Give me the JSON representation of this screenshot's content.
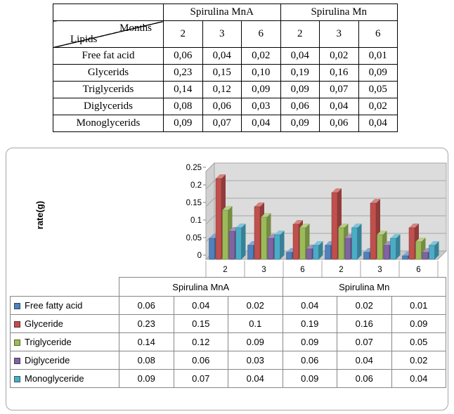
{
  "top_table": {
    "corner": {
      "top_right": "Months",
      "bottom_left": "Lipids"
    },
    "group_headers": [
      "Spirulina MnA",
      "Spirulina Mn"
    ],
    "months": [
      "2",
      "3",
      "6",
      "2",
      "3",
      "6"
    ],
    "rows": [
      {
        "label": "Free fat acid",
        "values": [
          "0,06",
          "0,04",
          "0,02",
          "0,04",
          "0,02",
          "0,01"
        ]
      },
      {
        "label": "Glycerids",
        "values": [
          "0,23",
          "0,15",
          "0,10",
          "0,19",
          "0,16",
          "0,09"
        ]
      },
      {
        "label": "Triglycerids",
        "values": [
          "0,14",
          "0,12",
          "0,09",
          "0,09",
          "0,07",
          "0,05"
        ]
      },
      {
        "label": "Diglycerids",
        "values": [
          "0,08",
          "0,06",
          "0,03",
          "0,06",
          "0,04",
          "0,02"
        ]
      },
      {
        "label": "Monoglycerids",
        "values": [
          "0,09",
          "0,07",
          "0,04",
          "0,09",
          "0,06",
          "0,04"
        ]
      }
    ]
  },
  "chart_data": {
    "type": "bar",
    "variant": "3d-clustered-column",
    "title": "",
    "ylabel": "rate(g)",
    "xlabel": "",
    "ylim": [
      0,
      0.25
    ],
    "ytick_step": 0.05,
    "yticks": [
      "0",
      "0.05",
      "0.1",
      "0.15",
      "0.2",
      "0.25"
    ],
    "grid": true,
    "legend_position": "data-table-left",
    "categories": [
      "2",
      "3",
      "6",
      "2",
      "3",
      "6"
    ],
    "category_groups": [
      {
        "label": "Spirulina MnA",
        "span": 3
      },
      {
        "label": "Spirulina Mn",
        "span": 3
      }
    ],
    "series": [
      {
        "name": "Free fatty acid",
        "color": "#4F81BD",
        "values": [
          0.06,
          0.04,
          0.02,
          0.04,
          0.02,
          0.01
        ],
        "display": [
          "0.06",
          "0.04",
          "0.02",
          "0.04",
          "0.02",
          "0.01"
        ]
      },
      {
        "name": "Glyceride",
        "color": "#C0504D",
        "values": [
          0.23,
          0.15,
          0.1,
          0.19,
          0.16,
          0.09
        ],
        "display": [
          "0.23",
          "0.15",
          "0.1",
          "0.19",
          "0.16",
          "0.09"
        ]
      },
      {
        "name": "Triglyceride",
        "color": "#9BBB59",
        "values": [
          0.14,
          0.12,
          0.09,
          0.09,
          0.07,
          0.05
        ],
        "display": [
          "0.14",
          "0.12",
          "0.09",
          "0.09",
          "0.07",
          "0.05"
        ]
      },
      {
        "name": "Diglyceride",
        "color": "#8064A2",
        "values": [
          0.08,
          0.06,
          0.03,
          0.06,
          0.04,
          0.02
        ],
        "display": [
          "0.08",
          "0.06",
          "0.03",
          "0.06",
          "0.04",
          "0.02"
        ]
      },
      {
        "name": "Monoglyceride",
        "color": "#4BACC6",
        "values": [
          0.09,
          0.07,
          0.04,
          0.09,
          0.06,
          0.04
        ],
        "display": [
          "0.09",
          "0.07",
          "0.04",
          "0.09",
          "0.06",
          "0.04"
        ]
      }
    ],
    "wall_colors": {
      "back": "#DCDCDC",
      "side": "#D0D0D0",
      "floor": "#C9C9C9",
      "gridline": "#A6A6A6"
    }
  }
}
